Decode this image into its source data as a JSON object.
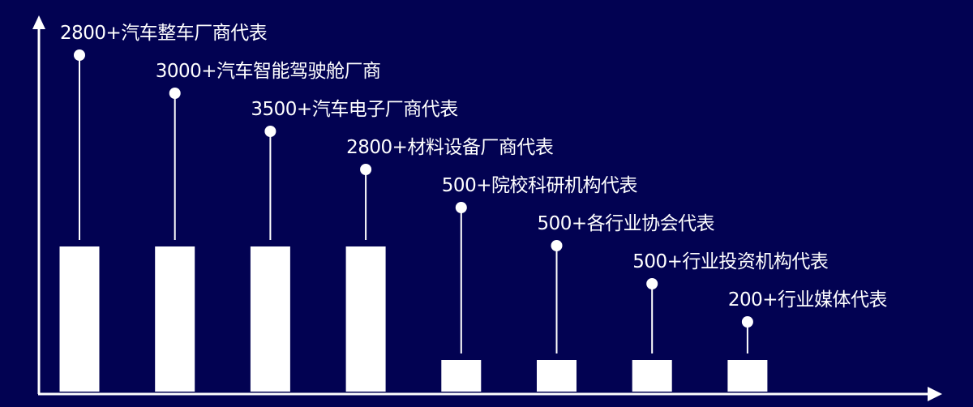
{
  "colors": {
    "background": "#020252",
    "marks": "#ffffff"
  },
  "chart_data": {
    "type": "bar",
    "title": "",
    "xlabel": "",
    "ylabel": "",
    "grid": false,
    "categories": [
      "2800+汽车整车厂商代表",
      "3000+汽车智能驾驶舱厂商",
      "3500+汽车电子厂商代表",
      "2800+材料设备厂商代表",
      "500+院校科研机构代表",
      "500+各行业协会代表",
      "500+行业投资机构代表",
      "200+行业媒体代表"
    ],
    "values": [
      2800,
      3000,
      3500,
      2800,
      500,
      500,
      500,
      200
    ]
  }
}
